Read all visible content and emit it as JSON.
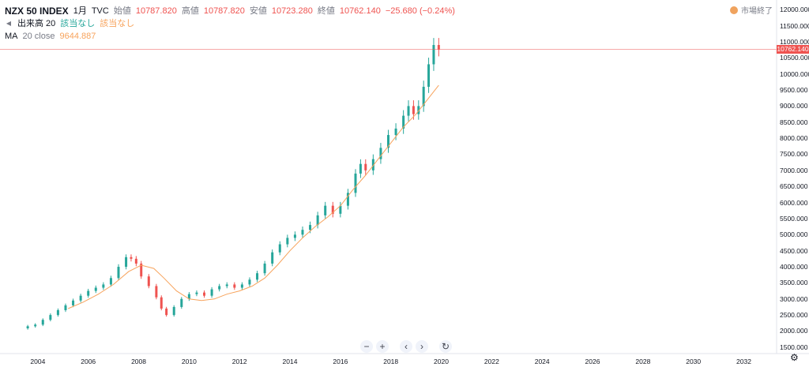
{
  "legend": {
    "symbol": "NZX 50 INDEX",
    "interval": "1月",
    "source": "TVC",
    "open_label": "始値",
    "open_value": "10787.820",
    "high_label": "高値",
    "high_value": "10787.820",
    "low_label": "安値",
    "low_value": "10723.280",
    "close_label": "終値",
    "close_value": "10762.140",
    "change": "−25.680 (−0.24%)",
    "volume_label": "出来高 20",
    "volume_value1": "該当なし",
    "volume_value2": "該当なし",
    "ma_label": "MA",
    "ma_params": "20 close",
    "ma_value": "9644.887"
  },
  "status": {
    "text": "市場終了"
  },
  "price_tag": "10762.140",
  "colors": {
    "up": "#26a69a",
    "down": "#ef5350",
    "ma": "#f7a35c",
    "axis_text": "#131722"
  },
  "y_axis": [
    "12000.000",
    "11500.000",
    "11000.000",
    "10500.000",
    "10000.000",
    "9500.000",
    "9000.000",
    "8500.000",
    "8000.000",
    "7500.000",
    "7000.000",
    "6500.000",
    "6000.000",
    "5500.000",
    "5000.000",
    "4500.000",
    "4000.000",
    "3500.000",
    "3000.000",
    "2500.000",
    "2000.000",
    "1500.000"
  ],
  "x_axis": [
    "2004",
    "2006",
    "2008",
    "2010",
    "2012",
    "2014",
    "2016",
    "2018",
    "2020",
    "2022",
    "2024",
    "2026",
    "2028",
    "2030",
    "2032"
  ],
  "nav_icons": [
    "zoom-out-icon",
    "zoom-in-icon",
    "scroll-left-icon",
    "scroll-right-icon",
    "reset-icon"
  ],
  "chart_data": {
    "type": "candlestick",
    "title": "NZX 50 INDEX",
    "ylim": [
      1300,
      12300
    ],
    "xlim": [
      2002.5,
      2033.3
    ],
    "series": [
      {
        "name": "NZX 50 INDEX",
        "points": [
          [
            2003.6,
            2150
          ],
          [
            2003.9,
            2200
          ],
          [
            2004.2,
            2350
          ],
          [
            2004.5,
            2500
          ],
          [
            2004.8,
            2650
          ],
          [
            2005.1,
            2800
          ],
          [
            2005.4,
            2950
          ],
          [
            2005.7,
            3100
          ],
          [
            2006.0,
            3250
          ],
          [
            2006.3,
            3350
          ],
          [
            2006.6,
            3450
          ],
          [
            2006.9,
            3650
          ],
          [
            2007.2,
            4000
          ],
          [
            2007.5,
            4300
          ],
          [
            2007.7,
            4250
          ],
          [
            2007.9,
            4100
          ],
          [
            2008.1,
            3700
          ],
          [
            2008.4,
            3400
          ],
          [
            2008.7,
            3050
          ],
          [
            2008.9,
            2700
          ],
          [
            2009.1,
            2500
          ],
          [
            2009.4,
            2750
          ],
          [
            2009.7,
            3000
          ],
          [
            2010.0,
            3150
          ],
          [
            2010.3,
            3200
          ],
          [
            2010.6,
            3100
          ],
          [
            2010.9,
            3300
          ],
          [
            2011.2,
            3400
          ],
          [
            2011.5,
            3450
          ],
          [
            2011.8,
            3350
          ],
          [
            2012.1,
            3450
          ],
          [
            2012.4,
            3600
          ],
          [
            2012.7,
            3800
          ],
          [
            2013.0,
            4100
          ],
          [
            2013.3,
            4450
          ],
          [
            2013.6,
            4700
          ],
          [
            2013.9,
            4900
          ],
          [
            2014.2,
            5000
          ],
          [
            2014.5,
            5150
          ],
          [
            2014.8,
            5300
          ],
          [
            2015.1,
            5600
          ],
          [
            2015.4,
            5900
          ],
          [
            2015.7,
            5650
          ],
          [
            2016.0,
            5900
          ],
          [
            2016.3,
            6300
          ],
          [
            2016.6,
            6900
          ],
          [
            2016.8,
            7200
          ],
          [
            2017.0,
            7000
          ],
          [
            2017.3,
            7350
          ],
          [
            2017.6,
            7700
          ],
          [
            2017.9,
            8100
          ],
          [
            2018.2,
            8300
          ],
          [
            2018.5,
            8700
          ],
          [
            2018.7,
            9000
          ],
          [
            2018.9,
            8750
          ],
          [
            2019.1,
            9000
          ],
          [
            2019.3,
            9600
          ],
          [
            2019.5,
            10300
          ],
          [
            2019.7,
            10900
          ],
          [
            2019.9,
            10762
          ]
        ]
      },
      {
        "name": "MA 20 close",
        "points": [
          [
            2005.2,
            2700
          ],
          [
            2005.8,
            2900
          ],
          [
            2006.4,
            3150
          ],
          [
            2007.0,
            3450
          ],
          [
            2007.6,
            3850
          ],
          [
            2008.1,
            4050
          ],
          [
            2008.6,
            3950
          ],
          [
            2009.0,
            3650
          ],
          [
            2009.5,
            3250
          ],
          [
            2010.0,
            3000
          ],
          [
            2010.5,
            2950
          ],
          [
            2011.0,
            3000
          ],
          [
            2011.5,
            3150
          ],
          [
            2012.0,
            3250
          ],
          [
            2012.5,
            3400
          ],
          [
            2013.0,
            3650
          ],
          [
            2013.5,
            4050
          ],
          [
            2014.0,
            4500
          ],
          [
            2014.5,
            4900
          ],
          [
            2015.0,
            5250
          ],
          [
            2015.5,
            5550
          ],
          [
            2016.0,
            5900
          ],
          [
            2016.5,
            6400
          ],
          [
            2017.0,
            6850
          ],
          [
            2017.5,
            7350
          ],
          [
            2018.0,
            7850
          ],
          [
            2018.5,
            8350
          ],
          [
            2019.0,
            8750
          ],
          [
            2019.5,
            9250
          ],
          [
            2019.9,
            9645
          ]
        ]
      }
    ]
  }
}
